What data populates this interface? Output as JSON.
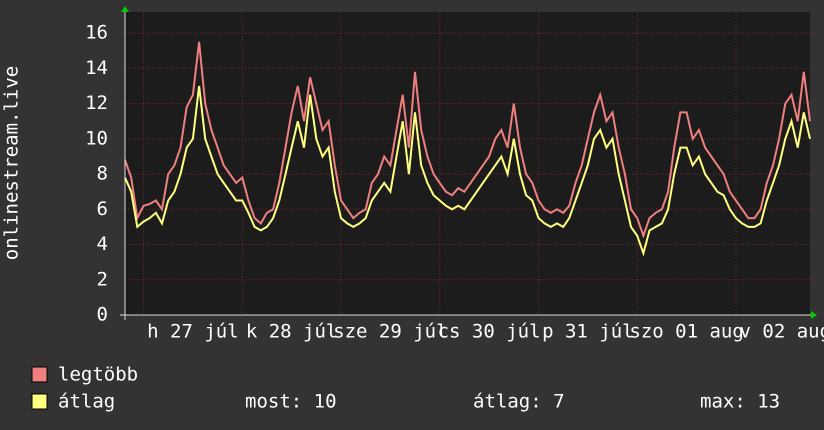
{
  "chart_data": {
    "type": "line",
    "y_label": "onlinestream.live",
    "categories": [
      null,
      null,
      null,
      null,
      null,
      null,
      null,
      null,
      null,
      null,
      null,
      "h 27 júl",
      null,
      null,
      null,
      null,
      null,
      null,
      null,
      null,
      null,
      null,
      null,
      null,
      null,
      null,
      null,
      "k 28 júl",
      null,
      null,
      null,
      null,
      null,
      null,
      null,
      null,
      null,
      null,
      null,
      null,
      null,
      null,
      null,
      "sze 29 júl",
      null,
      null,
      null,
      null,
      null,
      null,
      null,
      null,
      null,
      null,
      null,
      null,
      null,
      null,
      null,
      "cs 30 júl",
      null,
      null,
      null,
      null,
      null,
      null,
      null,
      null,
      null,
      null,
      null,
      null,
      null,
      null,
      null,
      "p 31 júl",
      null,
      null,
      null,
      null,
      null,
      null,
      null,
      null,
      null,
      null,
      null,
      null,
      null,
      null,
      null,
      "szo 01 aug",
      null,
      null,
      null,
      null,
      null,
      null,
      null,
      null,
      null,
      null,
      null,
      null,
      null,
      null,
      null,
      "v 02 aug",
      null,
      null,
      null,
      null
    ],
    "series": [
      {
        "name": "legtöbb",
        "color": "#f07f7f",
        "values": [
          8.8,
          7.8,
          5.5,
          6.2,
          6.3,
          6.5,
          6.0,
          8.0,
          8.5,
          9.5,
          11.8,
          12.5,
          15.5,
          12.0,
          10.5,
          9.5,
          8.5,
          8.0,
          7.5,
          7.8,
          6.5,
          5.5,
          5.2,
          5.8,
          6.0,
          7.5,
          9.5,
          11.5,
          13.0,
          11.0,
          13.5,
          12.0,
          10.5,
          11.0,
          8.5,
          6.5,
          6.0,
          5.5,
          5.8,
          6.0,
          7.5,
          8.0,
          9.0,
          8.5,
          10.5,
          12.5,
          9.5,
          13.8,
          10.5,
          9.0,
          8.0,
          7.5,
          7.0,
          6.8,
          7.2,
          7.0,
          7.5,
          8.0,
          8.5,
          9.0,
          10.0,
          10.5,
          9.5,
          12.0,
          9.5,
          8.0,
          7.5,
          6.5,
          6.0,
          5.8,
          6.0,
          5.8,
          6.2,
          7.5,
          8.5,
          10.0,
          11.5,
          12.5,
          11.0,
          11.5,
          9.5,
          8.0,
          6.0,
          5.5,
          4.5,
          5.5,
          5.8,
          6.0,
          7.0,
          9.5,
          11.5,
          11.5,
          10.0,
          10.5,
          9.5,
          9.0,
          8.5,
          8.0,
          7.0,
          6.5,
          6.0,
          5.5,
          5.5,
          6.0,
          7.5,
          8.5,
          10.0,
          12.0,
          12.5,
          11.0,
          13.8,
          11.0
        ]
      },
      {
        "name": "átlag",
        "color": "#ffff80",
        "values": [
          7.8,
          7.0,
          5.0,
          5.3,
          5.5,
          5.8,
          5.2,
          6.5,
          7.0,
          8.0,
          9.5,
          10.0,
          13.0,
          10.0,
          9.0,
          8.0,
          7.5,
          7.0,
          6.5,
          6.5,
          5.8,
          5.0,
          4.8,
          5.0,
          5.5,
          6.5,
          8.0,
          9.5,
          11.0,
          9.5,
          12.5,
          10.0,
          9.0,
          9.5,
          7.0,
          5.5,
          5.2,
          5.0,
          5.2,
          5.5,
          6.5,
          7.0,
          7.5,
          7.0,
          9.0,
          11.0,
          8.0,
          11.5,
          8.5,
          7.5,
          6.8,
          6.5,
          6.2,
          6.0,
          6.2,
          6.0,
          6.5,
          7.0,
          7.5,
          8.0,
          8.5,
          9.0,
          8.0,
          10.0,
          8.0,
          6.8,
          6.5,
          5.5,
          5.2,
          5.0,
          5.2,
          5.0,
          5.5,
          6.5,
          7.5,
          8.5,
          10.0,
          10.5,
          9.5,
          10.0,
          8.0,
          6.5,
          5.0,
          4.5,
          3.5,
          4.8,
          5.0,
          5.2,
          6.0,
          8.0,
          9.5,
          9.5,
          8.5,
          9.0,
          8.0,
          7.5,
          7.0,
          6.8,
          6.0,
          5.5,
          5.2,
          5.0,
          5.0,
          5.2,
          6.5,
          7.5,
          8.5,
          10.0,
          11.0,
          9.5,
          11.5,
          10.0
        ]
      }
    ],
    "stats": [
      "most: 10",
      "átlag: 7",
      "max: 13"
    ],
    "ylim": [
      0,
      17.2
    ],
    "yticks": [
      0,
      2,
      4,
      6,
      8,
      10,
      12,
      14,
      16
    ],
    "grid": true
  }
}
